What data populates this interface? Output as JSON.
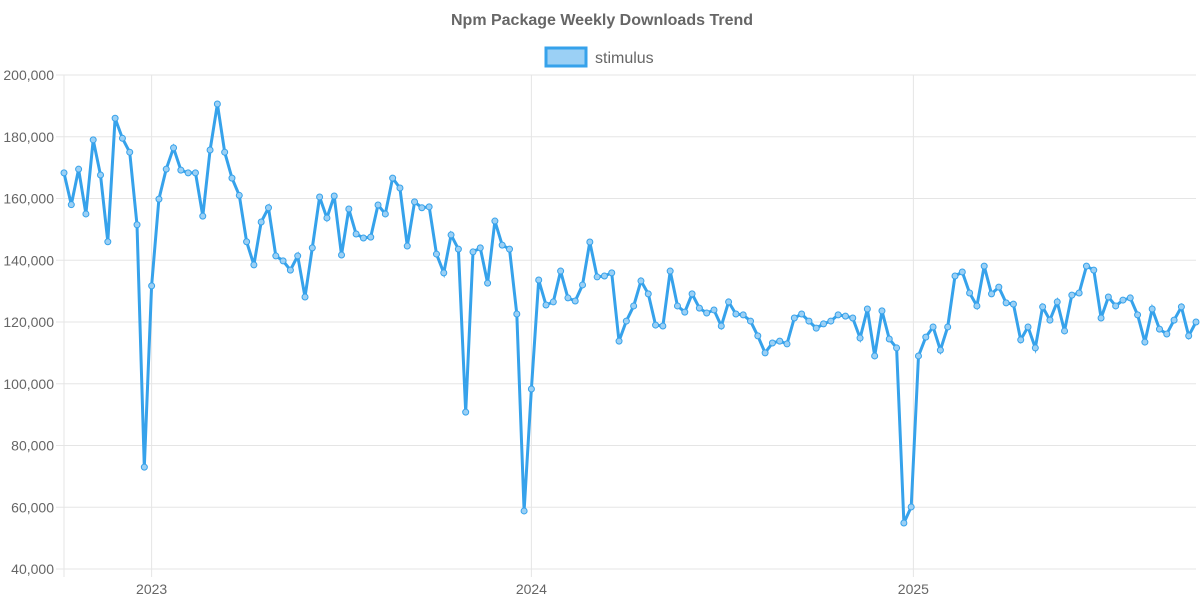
{
  "chart_data": {
    "type": "line",
    "title": "Npm Package Weekly Downloads Trend",
    "xlabel": "",
    "ylabel": "",
    "ylim": [
      40000,
      200000
    ],
    "yticks": [
      40000,
      60000,
      80000,
      100000,
      120000,
      140000,
      160000,
      180000,
      200000
    ],
    "ytick_labels": [
      "40,000",
      "60,000",
      "80,000",
      "100,000",
      "120,000",
      "140,000",
      "160,000",
      "180,000",
      "200,000"
    ],
    "x_unit": "week index",
    "xticks": [
      {
        "label": "2023",
        "week": 12
      },
      {
        "label": "2024",
        "week": 64
      },
      {
        "label": "2025",
        "week": 116.3
      }
    ],
    "grid": true,
    "legend_position": "top-center",
    "colors": {
      "line": "#36A2EB",
      "fill": "#9BD0F5",
      "grid": "#e5e5e5"
    },
    "series": [
      {
        "name": "stimulus",
        "values": [
          168300,
          158000,
          169500,
          155000,
          179000,
          167600,
          146000,
          186000,
          179500,
          175000,
          151500,
          73000,
          131700,
          159800,
          169500,
          176400,
          169200,
          168300,
          168300,
          154300,
          175700,
          190600,
          175000,
          166600,
          161000,
          146000,
          138500,
          152400,
          157000,
          141400,
          139800,
          136800,
          141400,
          128100,
          144000,
          160500,
          153700,
          160800,
          141700,
          156600,
          148500,
          147200,
          147500,
          157900,
          155000,
          166600,
          163400,
          144600,
          158900,
          157000,
          157300,
          142000,
          135900,
          148200,
          143600,
          90800,
          142700,
          144000,
          132600,
          152700,
          144900,
          143600,
          122600,
          58800,
          98300,
          133600,
          125500,
          126500,
          136500,
          127800,
          126800,
          132000,
          145900,
          134600,
          134900,
          135900,
          113800,
          120300,
          125200,
          133300,
          129100,
          119000,
          118700,
          136500,
          125200,
          123200,
          129100,
          124500,
          122900,
          123900,
          118700,
          126500,
          122600,
          122300,
          120300,
          115500,
          110000,
          113200,
          113800,
          112900,
          121300,
          122600,
          120300,
          118000,
          119400,
          120300,
          122300,
          121900,
          121300,
          114800,
          124200,
          109000,
          123600,
          114500,
          111600,
          54900,
          60100,
          109000,
          115100,
          118400,
          110900,
          118400,
          134900,
          136200,
          129400,
          125200,
          138100,
          129100,
          131300,
          126200,
          125800,
          114200,
          118400,
          111600,
          124900,
          120600,
          126500,
          117100,
          128700,
          129400,
          138100,
          136800,
          121300,
          128100,
          125200,
          127100,
          127800,
          122300,
          113500,
          124200,
          117700,
          116100,
          120600,
          124900,
          115500,
          120000
        ]
      }
    ]
  }
}
